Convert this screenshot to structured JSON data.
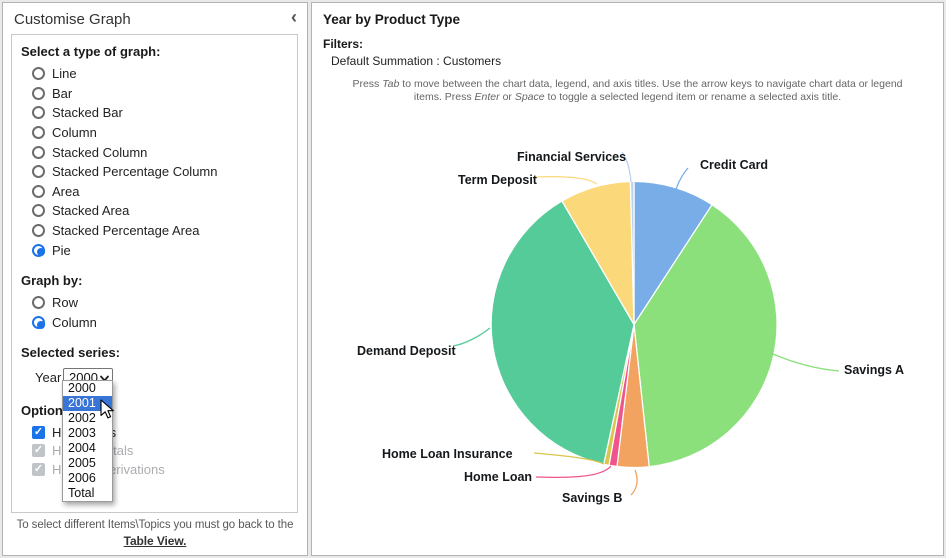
{
  "sidebar": {
    "title": "Customise Graph",
    "collapse_icon": "‹",
    "graph_type": {
      "heading": "Select a type of graph:",
      "options": [
        {
          "label": "Line",
          "selected": false
        },
        {
          "label": "Bar",
          "selected": false
        },
        {
          "label": "Stacked Bar",
          "selected": false
        },
        {
          "label": "Column",
          "selected": false
        },
        {
          "label": "Stacked Column",
          "selected": false
        },
        {
          "label": "Stacked Percentage Column",
          "selected": false
        },
        {
          "label": "Area",
          "selected": false
        },
        {
          "label": "Stacked Area",
          "selected": false
        },
        {
          "label": "Stacked Percentage Area",
          "selected": false
        },
        {
          "label": "Pie",
          "selected": true
        }
      ]
    },
    "graph_by": {
      "heading": "Graph by:",
      "options": [
        {
          "label": "Row",
          "selected": false
        },
        {
          "label": "Column",
          "selected": true
        }
      ]
    },
    "selected_series": {
      "heading": "Selected series:",
      "label": "Year",
      "value": "2000",
      "dropdown": {
        "options": [
          "2000",
          "2001",
          "2002",
          "2003",
          "2004",
          "2005",
          "2006",
          "Total"
        ],
        "highlighted": "2001"
      }
    },
    "options_section": {
      "heading": "Options",
      "checkboxes": [
        {
          "label": "Hide Totals",
          "checked": true,
          "disabled": false
        },
        {
          "label": "Hide All Totals",
          "checked": true,
          "disabled": true
        },
        {
          "label": "Hide All Derivations",
          "checked": true,
          "disabled": true
        }
      ]
    },
    "footer": {
      "text": "To select different Items\\Topics you must go back to the",
      "link": "Table View."
    }
  },
  "main": {
    "title": "Year by Product Type",
    "filters_heading": "Filters:",
    "filters_value": "Default Summation : Customers",
    "instructions": {
      "p1": "Press ",
      "k1": "Tab",
      "p2": " to move between the chart data, legend, and axis titles. Use the arrow keys to navigate chart data or legend items. Press ",
      "k2": "Enter",
      "p3": " or ",
      "k3": "Space",
      "p4": " to toggle a selected legend item or rename a selected axis title."
    }
  },
  "chart_data": {
    "type": "pie",
    "title": "Year by Product Type",
    "series_name": "Year",
    "selected_series": "2000",
    "value_unit": "Customers (percent share)",
    "legend": "none",
    "labels": "callout",
    "slices": [
      {
        "label": "Credit Card",
        "percent": 9.2,
        "color": "#78ADE8"
      },
      {
        "label": "Savings A",
        "percent": 39.1,
        "color": "#8BE07C"
      },
      {
        "label": "Savings B",
        "percent": 3.6,
        "color": "#F2A35F"
      },
      {
        "label": "Home Loan",
        "percent": 0.9,
        "color": "#EF548C"
      },
      {
        "label": "Home Loan Insurance",
        "percent": 0.6,
        "color": "#D9C54F"
      },
      {
        "label": "Demand Deposit",
        "percent": 38.2,
        "color": "#55CB9A"
      },
      {
        "label": "Term Deposit",
        "percent": 8.0,
        "color": "#FBD97B"
      },
      {
        "label": "Financial Services",
        "percent": 0.4,
        "color": "#B8D2F0"
      }
    ]
  }
}
